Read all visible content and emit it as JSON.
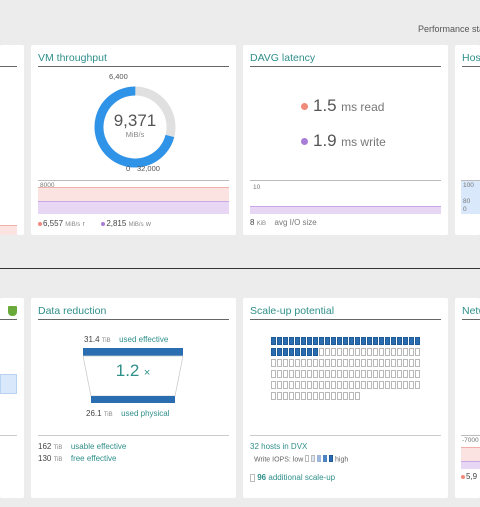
{
  "header": {
    "performance_label": "Performance sta"
  },
  "vm_throughput": {
    "title": "VM throughput",
    "gauge_top_label": "6,400",
    "value": "9,371",
    "unit": "MiB/s",
    "min_label": "0",
    "max_label": "32,000",
    "fill_fraction": 0.29,
    "chart_label": "8000",
    "read_value": "6,557",
    "read_unit": "MiB/s",
    "read_suffix": "r",
    "write_value": "2,815",
    "write_unit": "MiB/s",
    "write_suffix": "w"
  },
  "davg_latency": {
    "title": "DAVG latency",
    "read_value": "1.5",
    "read_label": "ms read",
    "write_value": "1.9",
    "write_label": "ms write",
    "chart_label": "10",
    "io_value": "8",
    "io_unit": "KiB",
    "io_label": "avg I/O size"
  },
  "hosts_card": {
    "title": "Hos",
    "label_100": "100",
    "label_80": "80",
    "label_0": "0"
  },
  "data_reduction": {
    "title": "Data reduction",
    "used_effective_value": "31.4",
    "used_effective_unit": "TiB",
    "used_effective_label": "used effective",
    "ratio": "1.2",
    "ratio_symbol": "×",
    "used_physical_value": "26.1",
    "used_physical_unit": "TiB",
    "used_physical_label": "used physical",
    "usable_value": "162",
    "usable_unit": "TiB",
    "usable_label": "usable effective",
    "free_value": "130",
    "free_unit": "TiB",
    "free_label": "free effective"
  },
  "scale_up": {
    "title": "Scale-up potential",
    "hosts_label": "32 hosts in DVX",
    "write_iops_label": "Write IOPS:",
    "low_label": "low",
    "high_label": "high",
    "additional_value": "96",
    "additional_label": "additional scale-up"
  },
  "network_card": {
    "title": "Netw",
    "chart_label": "-7000",
    "value": "5,9"
  },
  "colors": {
    "teal": "#2f8f8a",
    "blue": "#2f93e8",
    "read_dot": "#f08a7a",
    "write_dot": "#a87ed8",
    "dark_blue": "#2a6db0"
  }
}
